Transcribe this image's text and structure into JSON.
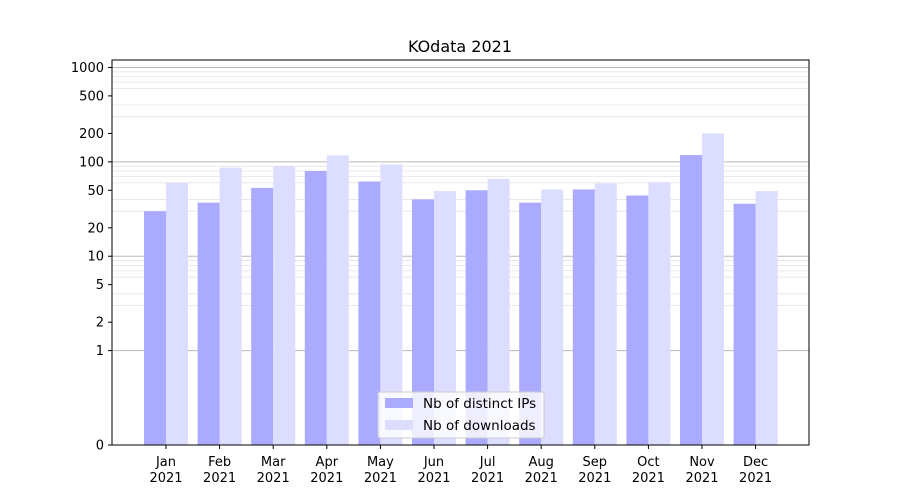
{
  "chart_data": {
    "type": "bar",
    "title": "KOdata 2021",
    "xlabel": "",
    "ylabel": "",
    "yscale": "symlog",
    "ylim": [
      0,
      1200
    ],
    "yticks": [
      0,
      1,
      2,
      5,
      10,
      20,
      50,
      100,
      200,
      500,
      1000
    ],
    "ytick_labels": [
      "0",
      "1",
      "2",
      "5",
      "10",
      "20",
      "50",
      "100",
      "200",
      "500",
      "1000"
    ],
    "grid": true,
    "legend_position": "bottom-center",
    "categories": [
      [
        "Jan",
        "2021"
      ],
      [
        "Feb",
        "2021"
      ],
      [
        "Mar",
        "2021"
      ],
      [
        "Apr",
        "2021"
      ],
      [
        "May",
        "2021"
      ],
      [
        "Jun",
        "2021"
      ],
      [
        "Jul",
        "2021"
      ],
      [
        "Aug",
        "2021"
      ],
      [
        "Sep",
        "2021"
      ],
      [
        "Oct",
        "2021"
      ],
      [
        "Nov",
        "2021"
      ],
      [
        "Dec",
        "2021"
      ]
    ],
    "series": [
      {
        "name": "Nb of distinct IPs",
        "color": "#aaaaff",
        "values": [
          30,
          37,
          53,
          80,
          62,
          40,
          50,
          37,
          51,
          44,
          118,
          36
        ]
      },
      {
        "name": "Nb of downloads",
        "color": "#ddddff",
        "values": [
          60,
          87,
          90,
          117,
          94,
          49,
          66,
          51,
          59,
          61,
          200,
          49
        ]
      }
    ]
  }
}
